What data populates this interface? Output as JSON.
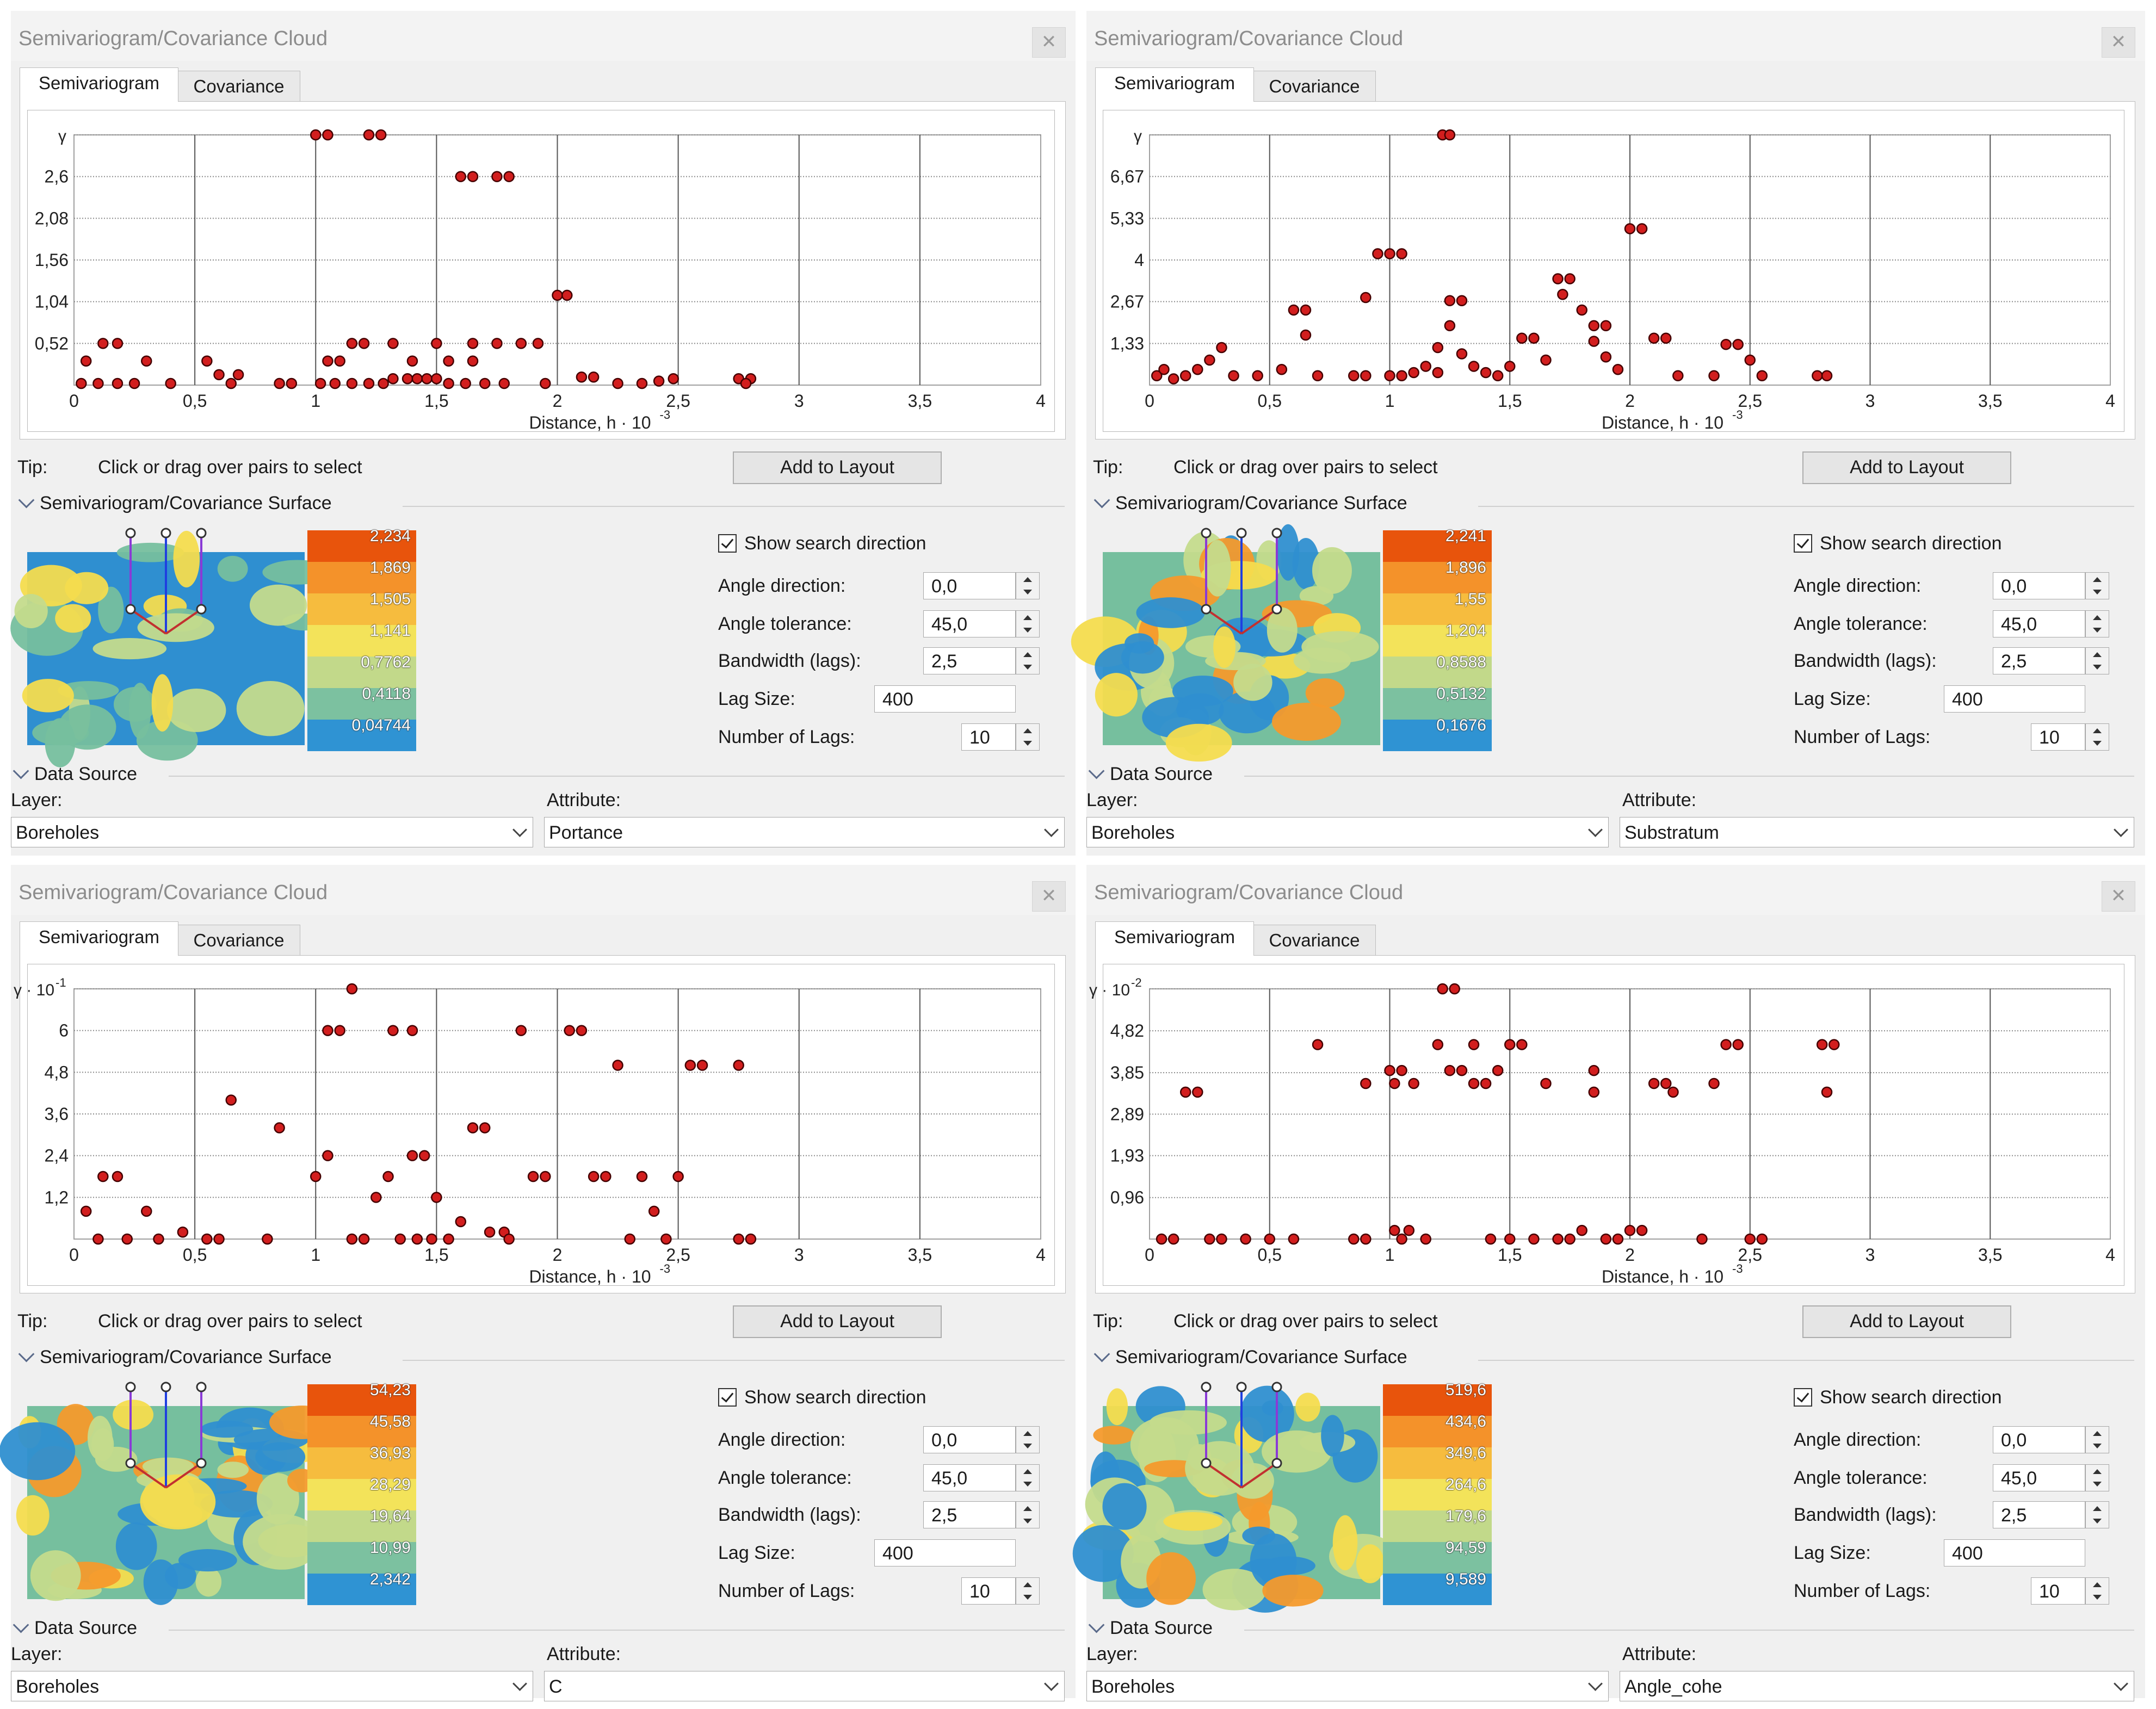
{
  "title_label": "Tip:",
  "tip_text": "Click or drag over pairs to select",
  "window_title": "Semivariogram/Covariance Cloud",
  "tabs": [
    "Semivariogram",
    "Covariance"
  ],
  "add_to_layout": "Add to Layout",
  "surface_section": "Semivariogram/Covariance Surface",
  "data_source_section": "Data Source",
  "layer_label": "Layer:",
  "attribute_label": "Attribute:",
  "show_search_direction": "Show search direction",
  "params": {
    "angle_direction_label": "Angle direction:",
    "angle_tolerance_label": "Angle tolerance:",
    "bandwidth_label": "Bandwidth (lags):",
    "lag_size_label": "Lag Size:",
    "num_lags_label": "Number of Lags:",
    "angle_direction": "0,0",
    "angle_tolerance": "45,0",
    "bandwidth": "2,5",
    "lag_size": "400",
    "num_lags": "10"
  },
  "colors": {
    "legend": [
      "#e8540c",
      "#f4922a",
      "#f6bc3e",
      "#f3e35a",
      "#c2d98a",
      "#7cc1a0",
      "#2f93d3"
    ],
    "point": "#d21e1e",
    "map_blue": "#2f8fd0",
    "map_teal": "#76bf9e",
    "map_lightgreen": "#c4db8c",
    "map_yellow": "#f4dc4e",
    "map_orange": "#f49a2c"
  },
  "windows": [
    {
      "layer": "Boreholes",
      "attribute": "Portance",
      "legend_values": [
        "2,234",
        "1,869",
        "1,505",
        "1,141",
        "0,7762",
        "0,4118",
        "0,04744"
      ],
      "chart_data": {
        "type": "scatter",
        "xlabel": "Distance, h · 10",
        "xlabel_exp": "-3",
        "ylabel": "γ",
        "ylabel_exp": "",
        "xlim": [
          0,
          4
        ],
        "x_ticks": [
          "0",
          "0,5",
          "1",
          "1,5",
          "2",
          "2,5",
          "3",
          "3,5",
          "4"
        ],
        "ylim": [
          0,
          3.12
        ],
        "y_ticks": [
          0.52,
          1.04,
          1.56,
          2.08,
          2.6
        ],
        "y_tick_labels": [
          "0,52",
          "1,04",
          "1,56",
          "2,08",
          "2,6"
        ],
        "points": [
          [
            0.05,
            0.3
          ],
          [
            0.12,
            0.52
          ],
          [
            0.18,
            0.52
          ],
          [
            0.3,
            0.3
          ],
          [
            0.55,
            0.3
          ],
          [
            0.6,
            0.13
          ],
          [
            0.68,
            0.13
          ],
          [
            0.03,
            0.02
          ],
          [
            0.1,
            0.02
          ],
          [
            0.18,
            0.02
          ],
          [
            0.25,
            0.02
          ],
          [
            0.4,
            0.02
          ],
          [
            0.65,
            0.02
          ],
          [
            0.85,
            0.02
          ],
          [
            0.9,
            0.02
          ],
          [
            1.0,
            3.12
          ],
          [
            1.05,
            3.12
          ],
          [
            1.22,
            3.12
          ],
          [
            1.27,
            3.12
          ],
          [
            1.6,
            2.6
          ],
          [
            1.65,
            2.6
          ],
          [
            1.75,
            2.6
          ],
          [
            1.8,
            2.6
          ],
          [
            2.0,
            1.12
          ],
          [
            2.04,
            1.12
          ],
          [
            1.05,
            0.3
          ],
          [
            1.1,
            0.3
          ],
          [
            1.15,
            0.52
          ],
          [
            1.2,
            0.52
          ],
          [
            1.32,
            0.52
          ],
          [
            1.5,
            0.52
          ],
          [
            1.65,
            0.52
          ],
          [
            1.75,
            0.52
          ],
          [
            1.85,
            0.52
          ],
          [
            1.92,
            0.52
          ],
          [
            1.4,
            0.3
          ],
          [
            1.55,
            0.3
          ],
          [
            1.65,
            0.3
          ],
          [
            1.02,
            0.02
          ],
          [
            1.08,
            0.02
          ],
          [
            1.15,
            0.02
          ],
          [
            1.22,
            0.02
          ],
          [
            1.28,
            0.02
          ],
          [
            1.32,
            0.08
          ],
          [
            1.38,
            0.08
          ],
          [
            1.42,
            0.08
          ],
          [
            1.46,
            0.08
          ],
          [
            1.5,
            0.08
          ],
          [
            1.55,
            0.02
          ],
          [
            1.62,
            0.02
          ],
          [
            1.7,
            0.02
          ],
          [
            1.78,
            0.02
          ],
          [
            1.95,
            0.02
          ],
          [
            2.1,
            0.1
          ],
          [
            2.15,
            0.1
          ],
          [
            2.25,
            0.02
          ],
          [
            2.35,
            0.02
          ],
          [
            2.42,
            0.05
          ],
          [
            2.48,
            0.08
          ],
          [
            2.75,
            0.08
          ],
          [
            2.8,
            0.08
          ],
          [
            2.78,
            0.02
          ]
        ]
      }
    },
    {
      "layer": "Boreholes",
      "attribute": "Substratum",
      "legend_values": [
        "2,241",
        "1,896",
        "1,55",
        "1,204",
        "0,8588",
        "0,5132",
        "0,1676"
      ],
      "chart_data": {
        "type": "scatter",
        "xlabel": "Distance, h · 10",
        "xlabel_exp": "-3",
        "ylabel": "γ",
        "ylabel_exp": "",
        "xlim": [
          0,
          4
        ],
        "x_ticks": [
          "0",
          "0,5",
          "1",
          "1,5",
          "2",
          "2,5",
          "3",
          "3,5",
          "4"
        ],
        "ylim": [
          0,
          8
        ],
        "y_ticks": [
          1.33,
          2.67,
          4,
          5.33,
          6.67
        ],
        "y_tick_labels": [
          "1,33",
          "2,67",
          "4",
          "5,33",
          "6,67"
        ],
        "points": [
          [
            0.03,
            0.3
          ],
          [
            0.06,
            0.5
          ],
          [
            0.1,
            0.2
          ],
          [
            0.15,
            0.3
          ],
          [
            0.2,
            0.5
          ],
          [
            0.25,
            0.8
          ],
          [
            0.3,
            1.2
          ],
          [
            0.35,
            0.3
          ],
          [
            0.45,
            0.3
          ],
          [
            0.55,
            0.5
          ],
          [
            0.6,
            2.4
          ],
          [
            0.65,
            2.4
          ],
          [
            0.65,
            1.6
          ],
          [
            0.7,
            0.3
          ],
          [
            0.85,
            0.3
          ],
          [
            0.9,
            0.3
          ],
          [
            0.9,
            2.8
          ],
          [
            0.95,
            4.2
          ],
          [
            1.0,
            4.2
          ],
          [
            1.05,
            4.2
          ],
          [
            1.0,
            0.3
          ],
          [
            1.05,
            0.3
          ],
          [
            1.1,
            0.4
          ],
          [
            1.15,
            0.6
          ],
          [
            1.2,
            0.4
          ],
          [
            1.22,
            8
          ],
          [
            1.25,
            8
          ],
          [
            1.25,
            2.7
          ],
          [
            1.3,
            2.7
          ],
          [
            1.2,
            1.2
          ],
          [
            1.25,
            1.9
          ],
          [
            1.3,
            1.0
          ],
          [
            1.35,
            0.6
          ],
          [
            1.4,
            0.4
          ],
          [
            1.45,
            0.3
          ],
          [
            1.5,
            0.6
          ],
          [
            1.55,
            1.5
          ],
          [
            1.6,
            1.5
          ],
          [
            1.65,
            0.8
          ],
          [
            1.7,
            3.4
          ],
          [
            1.75,
            3.4
          ],
          [
            1.72,
            2.9
          ],
          [
            1.8,
            2.4
          ],
          [
            1.85,
            1.9
          ],
          [
            1.9,
            1.9
          ],
          [
            1.85,
            1.4
          ],
          [
            1.9,
            0.9
          ],
          [
            1.95,
            0.5
          ],
          [
            2.0,
            5.0
          ],
          [
            2.05,
            5.0
          ],
          [
            2.1,
            1.5
          ],
          [
            2.15,
            1.5
          ],
          [
            2.2,
            0.3
          ],
          [
            2.35,
            0.3
          ],
          [
            2.4,
            1.3
          ],
          [
            2.45,
            1.3
          ],
          [
            2.5,
            0.8
          ],
          [
            2.55,
            0.3
          ],
          [
            2.78,
            0.3
          ],
          [
            2.82,
            0.3
          ]
        ]
      }
    },
    {
      "layer": "Boreholes",
      "attribute": "C",
      "legend_values": [
        "54,23",
        "45,58",
        "36,93",
        "28,29",
        "19,64",
        "10,99",
        "2,342"
      ],
      "chart_data": {
        "type": "scatter",
        "xlabel": "Distance, h · 10",
        "xlabel_exp": "-3",
        "ylabel": "γ · 10",
        "ylabel_exp": "-1",
        "xlim": [
          0,
          4
        ],
        "x_ticks": [
          "0",
          "0,5",
          "1",
          "1,5",
          "2",
          "2,5",
          "3",
          "3,5",
          "4"
        ],
        "ylim": [
          0,
          7.2
        ],
        "y_ticks": [
          1.2,
          2.4,
          3.6,
          4.8,
          6.0
        ],
        "y_tick_labels": [
          "1,2",
          "2,4",
          "3,6",
          "4,8",
          "6"
        ],
        "points": [
          [
            0.05,
            0.8
          ],
          [
            0.1,
            0.0
          ],
          [
            0.12,
            1.8
          ],
          [
            0.18,
            1.8
          ],
          [
            0.22,
            0.0
          ],
          [
            0.3,
            0.8
          ],
          [
            0.35,
            0.0
          ],
          [
            0.45,
            0.2
          ],
          [
            0.55,
            0.0
          ],
          [
            0.6,
            0.0
          ],
          [
            0.65,
            4.0
          ],
          [
            0.8,
            0.0
          ],
          [
            0.85,
            3.2
          ],
          [
            1.0,
            1.8
          ],
          [
            1.05,
            2.4
          ],
          [
            1.05,
            6.0
          ],
          [
            1.1,
            6.0
          ],
          [
            1.15,
            7.2
          ],
          [
            1.15,
            0.0
          ],
          [
            1.2,
            0.0
          ],
          [
            1.25,
            1.2
          ],
          [
            1.3,
            1.8
          ],
          [
            1.32,
            6.0
          ],
          [
            1.4,
            6.0
          ],
          [
            1.35,
            0.0
          ],
          [
            1.4,
            2.4
          ],
          [
            1.45,
            2.4
          ],
          [
            1.42,
            0.0
          ],
          [
            1.48,
            0.0
          ],
          [
            1.5,
            1.2
          ],
          [
            1.55,
            0.0
          ],
          [
            1.6,
            0.5
          ],
          [
            1.65,
            3.2
          ],
          [
            1.7,
            3.2
          ],
          [
            1.72,
            0.2
          ],
          [
            1.78,
            0.2
          ],
          [
            1.8,
            0.0
          ],
          [
            1.85,
            6.0
          ],
          [
            1.9,
            1.8
          ],
          [
            1.95,
            1.8
          ],
          [
            2.05,
            6.0
          ],
          [
            2.1,
            6.0
          ],
          [
            2.15,
            1.8
          ],
          [
            2.2,
            1.8
          ],
          [
            2.25,
            5.0
          ],
          [
            2.3,
            0.0
          ],
          [
            2.35,
            1.8
          ],
          [
            2.4,
            0.8
          ],
          [
            2.45,
            0.0
          ],
          [
            2.5,
            1.8
          ],
          [
            2.55,
            5.0
          ],
          [
            2.6,
            5.0
          ],
          [
            2.75,
            5.0
          ],
          [
            2.75,
            0.0
          ],
          [
            2.8,
            0.0
          ]
        ]
      }
    },
    {
      "layer": "Boreholes",
      "attribute": "Angle_cohe",
      "legend_values": [
        "519,6",
        "434,6",
        "349,6",
        "264,6",
        "179,6",
        "94,59",
        "9,589"
      ],
      "chart_data": {
        "type": "scatter",
        "xlabel": "Distance, h · 10",
        "xlabel_exp": "-3",
        "ylabel": "γ · 10",
        "ylabel_exp": "-2",
        "xlim": [
          0,
          4
        ],
        "x_ticks": [
          "0",
          "0,5",
          "1",
          "1,5",
          "2",
          "2,5",
          "3",
          "3,5",
          "4"
        ],
        "ylim": [
          0,
          5.79
        ],
        "y_ticks": [
          0.96,
          1.93,
          2.89,
          3.85,
          4.82
        ],
        "y_tick_labels": [
          "0,96",
          "1,93",
          "2,89",
          "3,85",
          "4,82"
        ],
        "points": [
          [
            0.05,
            0.0
          ],
          [
            0.1,
            0.0
          ],
          [
            0.15,
            3.4
          ],
          [
            0.2,
            3.4
          ],
          [
            0.25,
            0.0
          ],
          [
            0.3,
            0.0
          ],
          [
            0.4,
            0.0
          ],
          [
            0.5,
            0.0
          ],
          [
            0.6,
            0.0
          ],
          [
            0.7,
            4.5
          ],
          [
            0.85,
            0.0
          ],
          [
            0.9,
            0.0
          ],
          [
            0.9,
            3.6
          ],
          [
            1.0,
            3.9
          ],
          [
            1.05,
            3.9
          ],
          [
            1.02,
            3.6
          ],
          [
            1.1,
            3.6
          ],
          [
            1.05,
            0.0
          ],
          [
            1.02,
            0.2
          ],
          [
            1.08,
            0.2
          ],
          [
            1.15,
            0.0
          ],
          [
            1.2,
            4.5
          ],
          [
            1.22,
            5.79
          ],
          [
            1.27,
            5.79
          ],
          [
            1.25,
            3.9
          ],
          [
            1.3,
            3.9
          ],
          [
            1.35,
            4.5
          ],
          [
            1.35,
            3.6
          ],
          [
            1.4,
            3.6
          ],
          [
            1.42,
            0.0
          ],
          [
            1.45,
            3.9
          ],
          [
            1.5,
            4.5
          ],
          [
            1.55,
            4.5
          ],
          [
            1.5,
            0.0
          ],
          [
            1.6,
            0.0
          ],
          [
            1.65,
            3.6
          ],
          [
            1.7,
            0.0
          ],
          [
            1.75,
            0.0
          ],
          [
            1.8,
            0.2
          ],
          [
            1.85,
            3.9
          ],
          [
            1.85,
            3.4
          ],
          [
            1.9,
            0.0
          ],
          [
            1.95,
            0.0
          ],
          [
            2.0,
            0.2
          ],
          [
            2.05,
            0.2
          ],
          [
            2.1,
            3.6
          ],
          [
            2.15,
            3.6
          ],
          [
            2.18,
            3.4
          ],
          [
            2.3,
            0.0
          ],
          [
            2.35,
            3.6
          ],
          [
            2.4,
            4.5
          ],
          [
            2.45,
            4.5
          ],
          [
            2.5,
            0.0
          ],
          [
            2.55,
            0.0
          ],
          [
            2.8,
            4.5
          ],
          [
            2.85,
            4.5
          ],
          [
            2.82,
            3.4
          ]
        ]
      }
    }
  ]
}
